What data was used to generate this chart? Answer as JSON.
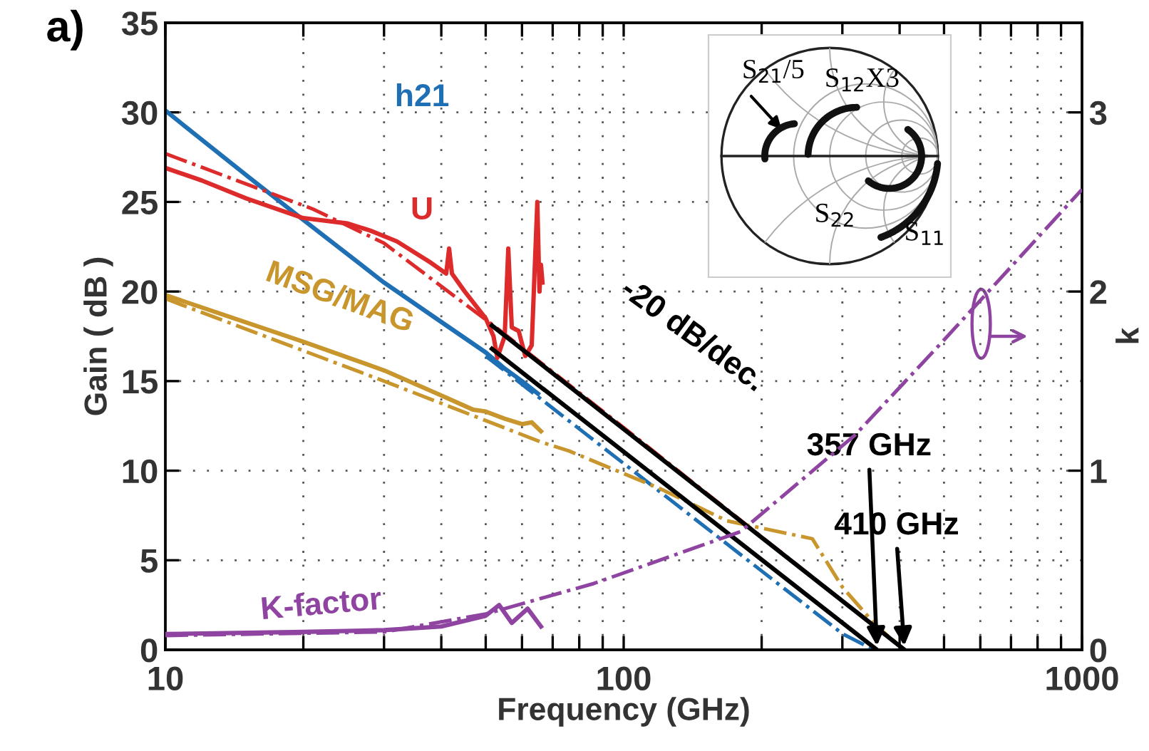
{
  "chart_data": {
    "type": "line",
    "xlabel": "Frequency (GHz)",
    "ylabel": "Gain ( dB )",
    "y2label": "k",
    "log": "x",
    "xlim": [
      10,
      1000
    ],
    "xticks": [
      10,
      {
        "value": 20,
        "label": null
      },
      {
        "value": 30,
        "label": null
      },
      {
        "value": 40,
        "label": null
      },
      {
        "value": 50,
        "label": null
      },
      {
        "value": 60,
        "label": null
      },
      {
        "value": 70,
        "label": null
      },
      {
        "value": 80,
        "label": null
      },
      {
        "value": 90,
        "label": null
      },
      100,
      {
        "value": 200,
        "label": null
      },
      {
        "value": 300,
        "label": null
      },
      {
        "value": 400,
        "label": null
      },
      {
        "value": 500,
        "label": null
      },
      {
        "value": 600,
        "label": null
      },
      {
        "value": 700,
        "label": null
      },
      {
        "value": 800,
        "label": null
      },
      {
        "value": 900,
        "label": null
      },
      1000
    ],
    "ylim": [
      0,
      35
    ],
    "yticks": [
      0,
      5,
      10,
      15,
      20,
      25,
      30,
      35
    ],
    "y2lim": [
      0,
      3.5
    ],
    "y2ticks": [
      0,
      1,
      2,
      3
    ],
    "grid": true,
    "legend": false,
    "series": [
      {
        "name": "h21",
        "color": "#1f6fb4",
        "line_style": "solid",
        "x": [
          10,
          15,
          20,
          30,
          40,
          50,
          55,
          60,
          65
        ],
        "values": [
          30.1,
          26.5,
          24.0,
          20.5,
          18.3,
          16.6,
          15.7,
          15.0,
          14.3
        ]
      },
      {
        "color": "#1f6fb4",
        "line_style": "dashdot",
        "x": [
          50,
          100,
          200,
          300,
          352
        ],
        "values": [
          16.4,
          10.4,
          4.4,
          0.9,
          0
        ]
      },
      {
        "name": "U",
        "color": "#dd2a2a",
        "line_style": "solid",
        "x": [
          10,
          12,
          15,
          20,
          25,
          28,
          32,
          38,
          41,
          41.6,
          42.2,
          45,
          50,
          52,
          53,
          55,
          56,
          57,
          59,
          61,
          63,
          64.8,
          65.5,
          66,
          66.5
        ],
        "values": [
          26.9,
          26.2,
          25.2,
          24.1,
          23.8,
          23.4,
          22.8,
          21.6,
          21.0,
          22.4,
          21.0,
          20.0,
          18.5,
          17.5,
          16.3,
          17.5,
          22.4,
          18.0,
          17.8,
          16.4,
          17.0,
          25.0,
          20.0,
          21.5,
          20.5
        ]
      },
      {
        "color": "#dd2a2a",
        "line_style": "dashdot",
        "x": [
          10,
          21,
          30,
          52,
          100,
          200,
          410
        ],
        "values": [
          27.7,
          24.6,
          22.7,
          18.1,
          12.4,
          6.3,
          0
        ]
      },
      {
        "name": "MSG/MAG",
        "color": "#c8962c",
        "line_style": "solid",
        "x": [
          10,
          20,
          30,
          40,
          47,
          50,
          55,
          60,
          63,
          66
        ],
        "values": [
          19.8,
          17.2,
          15.6,
          14.2,
          13.4,
          13.3,
          12.9,
          12.6,
          12.7,
          12.2
        ]
      },
      {
        "color": "#c8962c",
        "line_style": "dashdot",
        "x": [
          10,
          30,
          66,
          76,
          120,
          168,
          258,
          300,
          357,
          410
        ],
        "values": [
          19.6,
          15.0,
          11.6,
          11.1,
          9.0,
          7.2,
          6.2,
          3.5,
          1.3,
          0
        ]
      },
      {
        "color": "#000000",
        "line_style": "solid",
        "x": [
          51.6,
          410
        ],
        "values": [
          18.1,
          0
        ]
      },
      {
        "color": "#000000",
        "line_style": "solid",
        "x": [
          51.6,
          357
        ],
        "values": [
          16.8,
          0
        ]
      },
      {
        "name": "K-factor",
        "color": "#8e44a0",
        "line_style": "solid",
        "axis": "y2",
        "x": [
          10,
          20,
          30,
          40,
          50,
          53.5,
          57,
          61.7,
          66
        ],
        "values": [
          0.088,
          0.1,
          0.11,
          0.13,
          0.19,
          0.25,
          0.15,
          0.23,
          0.13
        ]
      },
      {
        "color": "#8e44a0",
        "line_style": "dashdot",
        "axis": "y2",
        "x": [
          10,
          30,
          50,
          86,
          180,
          320,
          492,
          1000
        ],
        "values": [
          0.08,
          0.1,
          0.2,
          0.37,
          0.66,
          1.2,
          1.71,
          2.57
        ]
      }
    ],
    "annotations": [
      "a)",
      "-20 dB/dec.",
      {
        "text": "357 GHz",
        "x": 357,
        "y": 0
      },
      {
        "text": "410 GHz",
        "x": 410,
        "y": 0
      },
      "S$_{21}$/5",
      "S$_{12}$X3",
      "S$_{22}$",
      "S$_{11}$"
    ]
  }
}
